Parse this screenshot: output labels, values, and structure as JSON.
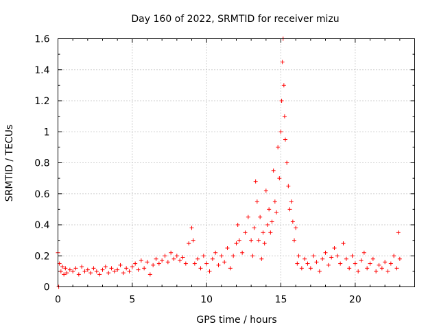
{
  "chart_data": {
    "type": "scatter",
    "title": "Day 160 of 2022, SRMTID for receiver mizu",
    "xlabel": "GPS time / hours",
    "ylabel": "SRMTID / TECUs",
    "xlim": [
      0,
      24
    ],
    "ylim": [
      0,
      1.6
    ],
    "xticks": [
      0,
      5,
      10,
      15,
      20
    ],
    "xtick_labels": [
      "0",
      "5",
      "10",
      "15",
      "20"
    ],
    "yticks": [
      0,
      0.2,
      0.4,
      0.6,
      0.8,
      1.0,
      1.2,
      1.4,
      1.6
    ],
    "ytick_labels": [
      "0",
      "0.2",
      "0.4",
      "0.6",
      "0.8",
      "1",
      "1.2",
      "1.4",
      "1.6"
    ],
    "grid": true,
    "marker": "+",
    "marker_color": "#ff0000",
    "series": [
      {
        "name": "SRMTID",
        "x": [
          0.0,
          0.05,
          0.1,
          0.2,
          0.3,
          0.4,
          0.5,
          0.6,
          0.8,
          1.0,
          1.2,
          1.4,
          1.6,
          1.8,
          2.0,
          2.2,
          2.4,
          2.6,
          2.8,
          3.0,
          3.2,
          3.4,
          3.6,
          3.8,
          4.0,
          4.2,
          4.4,
          4.6,
          4.8,
          5.0,
          5.2,
          5.4,
          5.6,
          5.8,
          6.0,
          6.2,
          6.4,
          6.6,
          6.8,
          7.0,
          7.2,
          7.4,
          7.6,
          7.8,
          8.0,
          8.2,
          8.4,
          8.6,
          8.8,
          9.0,
          9.1,
          9.2,
          9.4,
          9.6,
          9.8,
          10.0,
          10.2,
          10.4,
          10.6,
          10.8,
          11.0,
          11.2,
          11.4,
          11.6,
          11.8,
          12.0,
          12.1,
          12.2,
          12.4,
          12.6,
          12.8,
          13.0,
          13.1,
          13.2,
          13.3,
          13.4,
          13.5,
          13.6,
          13.7,
          13.8,
          13.9,
          14.0,
          14.1,
          14.2,
          14.3,
          14.4,
          14.5,
          14.6,
          14.7,
          14.8,
          14.9,
          15.0,
          15.05,
          15.1,
          15.15,
          15.2,
          15.25,
          15.3,
          15.4,
          15.5,
          15.6,
          15.7,
          15.8,
          15.9,
          16.0,
          16.1,
          16.2,
          16.4,
          16.6,
          16.8,
          17.0,
          17.2,
          17.4,
          17.6,
          17.8,
          18.0,
          18.2,
          18.4,
          18.6,
          18.8,
          19.0,
          19.2,
          19.4,
          19.6,
          19.8,
          20.0,
          20.2,
          20.4,
          20.6,
          20.8,
          21.0,
          21.2,
          21.4,
          21.6,
          21.8,
          22.0,
          22.2,
          22.4,
          22.6,
          22.8,
          22.9,
          23.0
        ],
        "y": [
          0.22,
          0.0,
          0.15,
          0.1,
          0.13,
          0.08,
          0.12,
          0.09,
          0.11,
          0.1,
          0.12,
          0.08,
          0.13,
          0.1,
          0.11,
          0.09,
          0.12,
          0.1,
          0.08,
          0.11,
          0.13,
          0.09,
          0.12,
          0.1,
          0.11,
          0.14,
          0.09,
          0.12,
          0.1,
          0.13,
          0.15,
          0.11,
          0.17,
          0.12,
          0.16,
          0.08,
          0.14,
          0.18,
          0.15,
          0.17,
          0.2,
          0.16,
          0.22,
          0.18,
          0.2,
          0.17,
          0.19,
          0.15,
          0.28,
          0.38,
          0.3,
          0.15,
          0.18,
          0.12,
          0.2,
          0.15,
          0.1,
          0.18,
          0.22,
          0.14,
          0.2,
          0.16,
          0.25,
          0.12,
          0.2,
          0.28,
          0.4,
          0.3,
          0.22,
          0.35,
          0.45,
          0.3,
          0.2,
          0.38,
          0.68,
          0.55,
          0.3,
          0.45,
          0.18,
          0.35,
          0.28,
          0.62,
          0.4,
          0.5,
          0.35,
          0.42,
          0.75,
          0.55,
          0.48,
          0.9,
          0.7,
          1.0,
          1.2,
          1.45,
          1.6,
          1.3,
          1.1,
          0.95,
          0.8,
          0.65,
          0.5,
          0.55,
          0.42,
          0.3,
          0.38,
          0.15,
          0.2,
          0.12,
          0.18,
          0.15,
          0.12,
          0.2,
          0.16,
          0.1,
          0.18,
          0.22,
          0.14,
          0.19,
          0.25,
          0.2,
          0.15,
          0.28,
          0.18,
          0.12,
          0.2,
          0.15,
          0.1,
          0.17,
          0.22,
          0.12,
          0.15,
          0.18,
          0.1,
          0.14,
          0.12,
          0.16,
          0.1,
          0.15,
          0.2,
          0.12,
          0.35,
          0.18
        ]
      }
    ]
  }
}
